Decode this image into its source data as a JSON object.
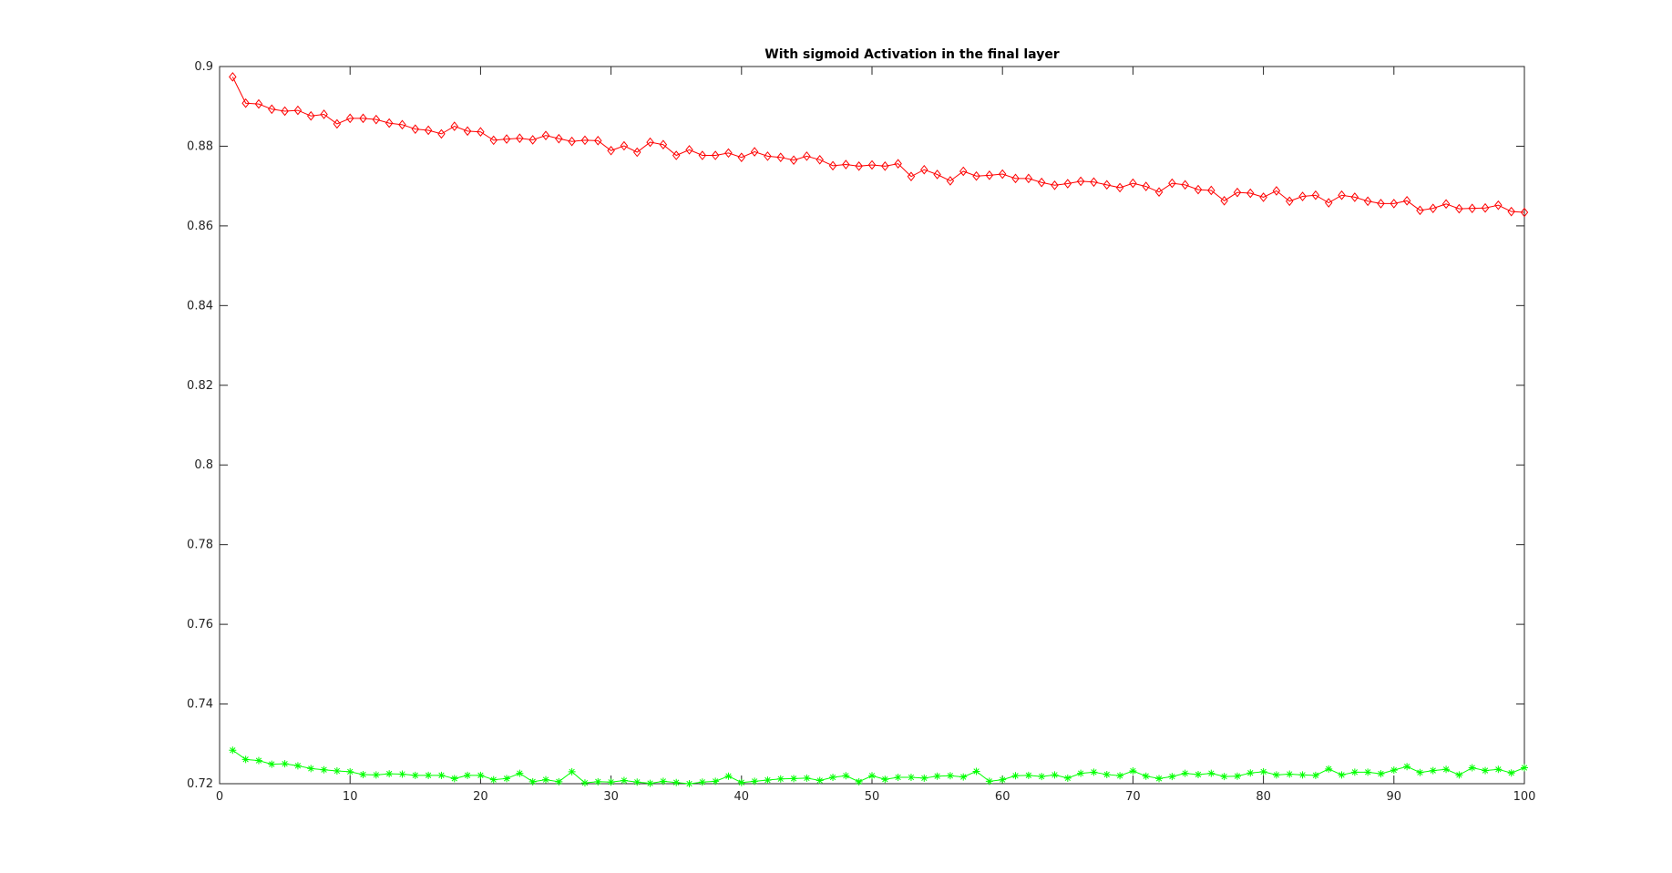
{
  "figure": {
    "background": "#ffffff"
  },
  "chart_data": {
    "type": "line",
    "title": "With sigmoid Activation in the final layer",
    "xlabel": "",
    "ylabel": "",
    "xlim": [
      0,
      100
    ],
    "ylim": [
      0.72,
      0.9
    ],
    "xticks": [
      0,
      10,
      20,
      30,
      40,
      50,
      60,
      70,
      80,
      90,
      100
    ],
    "xtick_labels": [
      "0",
      "10",
      "20",
      "30",
      "40",
      "50",
      "60",
      "70",
      "80",
      "90",
      "100"
    ],
    "yticks": [
      0.72,
      0.74,
      0.76,
      0.78,
      0.8,
      0.82,
      0.84,
      0.86,
      0.88,
      0.9
    ],
    "ytick_labels": [
      "0.72",
      "0.74",
      "0.76",
      "0.78",
      "0.8",
      "0.82",
      "0.84",
      "0.86",
      "0.88",
      "0.9"
    ],
    "grid": false,
    "legend": "none",
    "x": [
      1,
      2,
      3,
      4,
      5,
      6,
      7,
      8,
      9,
      10,
      11,
      12,
      13,
      14,
      15,
      16,
      17,
      18,
      19,
      20,
      21,
      22,
      23,
      24,
      25,
      26,
      27,
      28,
      29,
      30,
      31,
      32,
      33,
      34,
      35,
      36,
      37,
      38,
      39,
      40,
      41,
      42,
      43,
      44,
      45,
      46,
      47,
      48,
      49,
      50,
      51,
      52,
      53,
      54,
      55,
      56,
      57,
      58,
      59,
      60,
      61,
      62,
      63,
      64,
      65,
      66,
      67,
      68,
      69,
      70,
      71,
      72,
      73,
      74,
      75,
      76,
      77,
      78,
      79,
      80,
      81,
      82,
      83,
      84,
      85,
      86,
      87,
      88,
      89,
      90,
      91,
      92,
      93,
      94,
      95,
      96,
      97,
      98,
      99,
      100
    ],
    "series": [
      {
        "color": "#ff0000",
        "marker": "diamond",
        "values": [
          0.8974,
          0.8908,
          0.8906,
          0.8893,
          0.8888,
          0.889,
          0.8876,
          0.888,
          0.8856,
          0.887,
          0.887,
          0.8867,
          0.8858,
          0.8854,
          0.8843,
          0.884,
          0.8831,
          0.885,
          0.8838,
          0.8836,
          0.8815,
          0.8818,
          0.882,
          0.8816,
          0.8827,
          0.8819,
          0.8812,
          0.8815,
          0.8814,
          0.8789,
          0.8801,
          0.8785,
          0.881,
          0.8804,
          0.8777,
          0.8791,
          0.8777,
          0.8777,
          0.8783,
          0.8772,
          0.8786,
          0.8775,
          0.8772,
          0.8765,
          0.8775,
          0.8766,
          0.8751,
          0.8754,
          0.875,
          0.8753,
          0.875,
          0.8756,
          0.8724,
          0.8741,
          0.8729,
          0.8713,
          0.8737,
          0.8725,
          0.8727,
          0.873,
          0.8719,
          0.8719,
          0.8709,
          0.8702,
          0.8706,
          0.8712,
          0.871,
          0.8703,
          0.8696,
          0.8707,
          0.8699,
          0.8685,
          0.8707,
          0.8703,
          0.8691,
          0.8689,
          0.8663,
          0.8684,
          0.8682,
          0.8672,
          0.8688,
          0.8662,
          0.8674,
          0.8677,
          0.8658,
          0.8677,
          0.8672,
          0.8662,
          0.8656,
          0.8656,
          0.8663,
          0.8639,
          0.8644,
          0.8655,
          0.8643,
          0.8644,
          0.8645,
          0.8652,
          0.8636,
          0.8634
        ]
      },
      {
        "color": "#00ff00",
        "marker": "asterisk",
        "values": [
          0.7284,
          0.7261,
          0.7258,
          0.7249,
          0.725,
          0.7245,
          0.7238,
          0.7235,
          0.7232,
          0.723,
          0.7223,
          0.7222,
          0.7225,
          0.7224,
          0.7221,
          0.7221,
          0.7221,
          0.7213,
          0.7221,
          0.7221,
          0.721,
          0.7213,
          0.7226,
          0.7205,
          0.721,
          0.7205,
          0.723,
          0.7202,
          0.7205,
          0.7204,
          0.7208,
          0.7204,
          0.7201,
          0.7206,
          0.7203,
          0.72,
          0.7204,
          0.7206,
          0.7219,
          0.7203,
          0.7206,
          0.7209,
          0.7212,
          0.7213,
          0.7214,
          0.7208,
          0.7216,
          0.722,
          0.7205,
          0.722,
          0.7211,
          0.7216,
          0.7216,
          0.7214,
          0.7219,
          0.722,
          0.7217,
          0.7231,
          0.7206,
          0.721,
          0.722,
          0.7221,
          0.7218,
          0.7222,
          0.7214,
          0.7226,
          0.7229,
          0.7223,
          0.722,
          0.7232,
          0.7219,
          0.7213,
          0.7218,
          0.7226,
          0.7223,
          0.7226,
          0.7218,
          0.7219,
          0.7227,
          0.723,
          0.7222,
          0.7224,
          0.7222,
          0.7221,
          0.7237,
          0.7222,
          0.7229,
          0.7229,
          0.7225,
          0.7234,
          0.7243,
          0.7228,
          0.7233,
          0.7236,
          0.7222,
          0.724,
          0.7233,
          0.7236,
          0.7227,
          0.724
        ]
      }
    ]
  }
}
